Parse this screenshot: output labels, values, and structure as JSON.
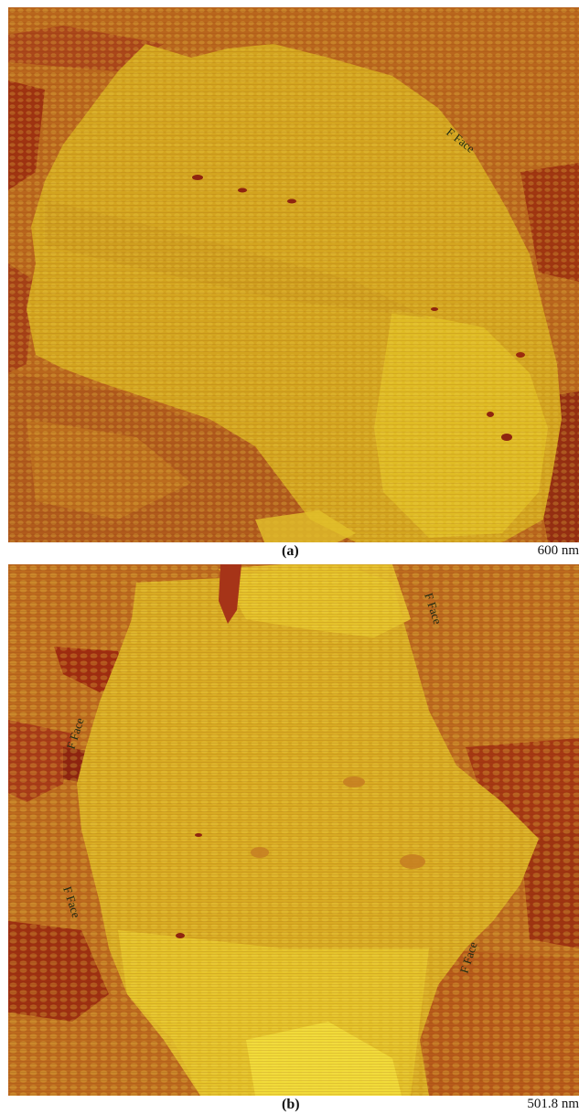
{
  "panels": [
    {
      "label": "(a)",
      "scale": "600 nm",
      "annotations": [
        "F Face"
      ]
    },
    {
      "label": "(b)",
      "scale": "501.8 nm",
      "annotations": [
        "F Face",
        "F Face",
        "F Face",
        "F Face"
      ]
    }
  ],
  "colors": {
    "background": "#b8661c",
    "dark": "#9a2a0f",
    "crystal": "#d6a91f",
    "bright": "#e6c626",
    "highlight": "#f2e03a"
  }
}
